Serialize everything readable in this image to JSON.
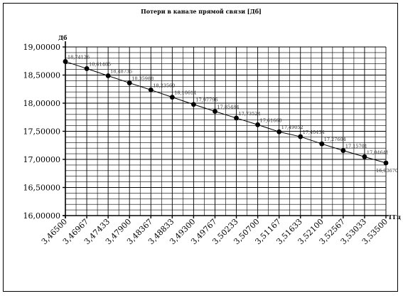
{
  "chart_data": {
    "type": "line",
    "title": "Потери в канале прямой связи [Дб]",
    "ylabel": "Дб",
    "xlabel": "ГГц",
    "ylim": [
      16.0,
      19.0
    ],
    "xlim": [
      3.465,
      3.535
    ],
    "x_ticks": [
      "3,46500",
      "3,46967",
      "3,47433",
      "3,47900",
      "3,48367",
      "3,48833",
      "3,49300",
      "3,49767",
      "3,50233",
      "3,50700",
      "3,51167",
      "3,51633",
      "3,52100",
      "3,52567",
      "3,53033",
      "3,53500"
    ],
    "y_ticks": [
      "16,00000",
      "16,50000",
      "17,00000",
      "17,50000",
      "18,00000",
      "18,50000",
      "19,00000"
    ],
    "grid": true,
    "series": [
      {
        "name": "",
        "x": [
          3.465,
          3.46967,
          3.47433,
          3.479,
          3.48367,
          3.48833,
          3.493,
          3.49767,
          3.50233,
          3.507,
          3.51167,
          3.51633,
          3.521,
          3.52567,
          3.53033,
          3.535
        ],
        "values": [
          18.74126,
          18.61485,
          18.48735,
          18.35988,
          18.2356,
          18.10614,
          17.97796,
          17.85484,
          17.73524,
          17.6166,
          17.49052,
          17.40434,
          17.27604,
          17.15701,
          17.04641,
          16.9367
        ],
        "labels": [
          "18,74126",
          "18,61485",
          "18,48735",
          "18,35988",
          "18,23560",
          "18,10614",
          "17,97796",
          "17,85484",
          "17,73524",
          "17,61660",
          "17,49052",
          "17,40434",
          "17,27604",
          "17,15701",
          "17,04641",
          "16,93670"
        ]
      }
    ]
  }
}
